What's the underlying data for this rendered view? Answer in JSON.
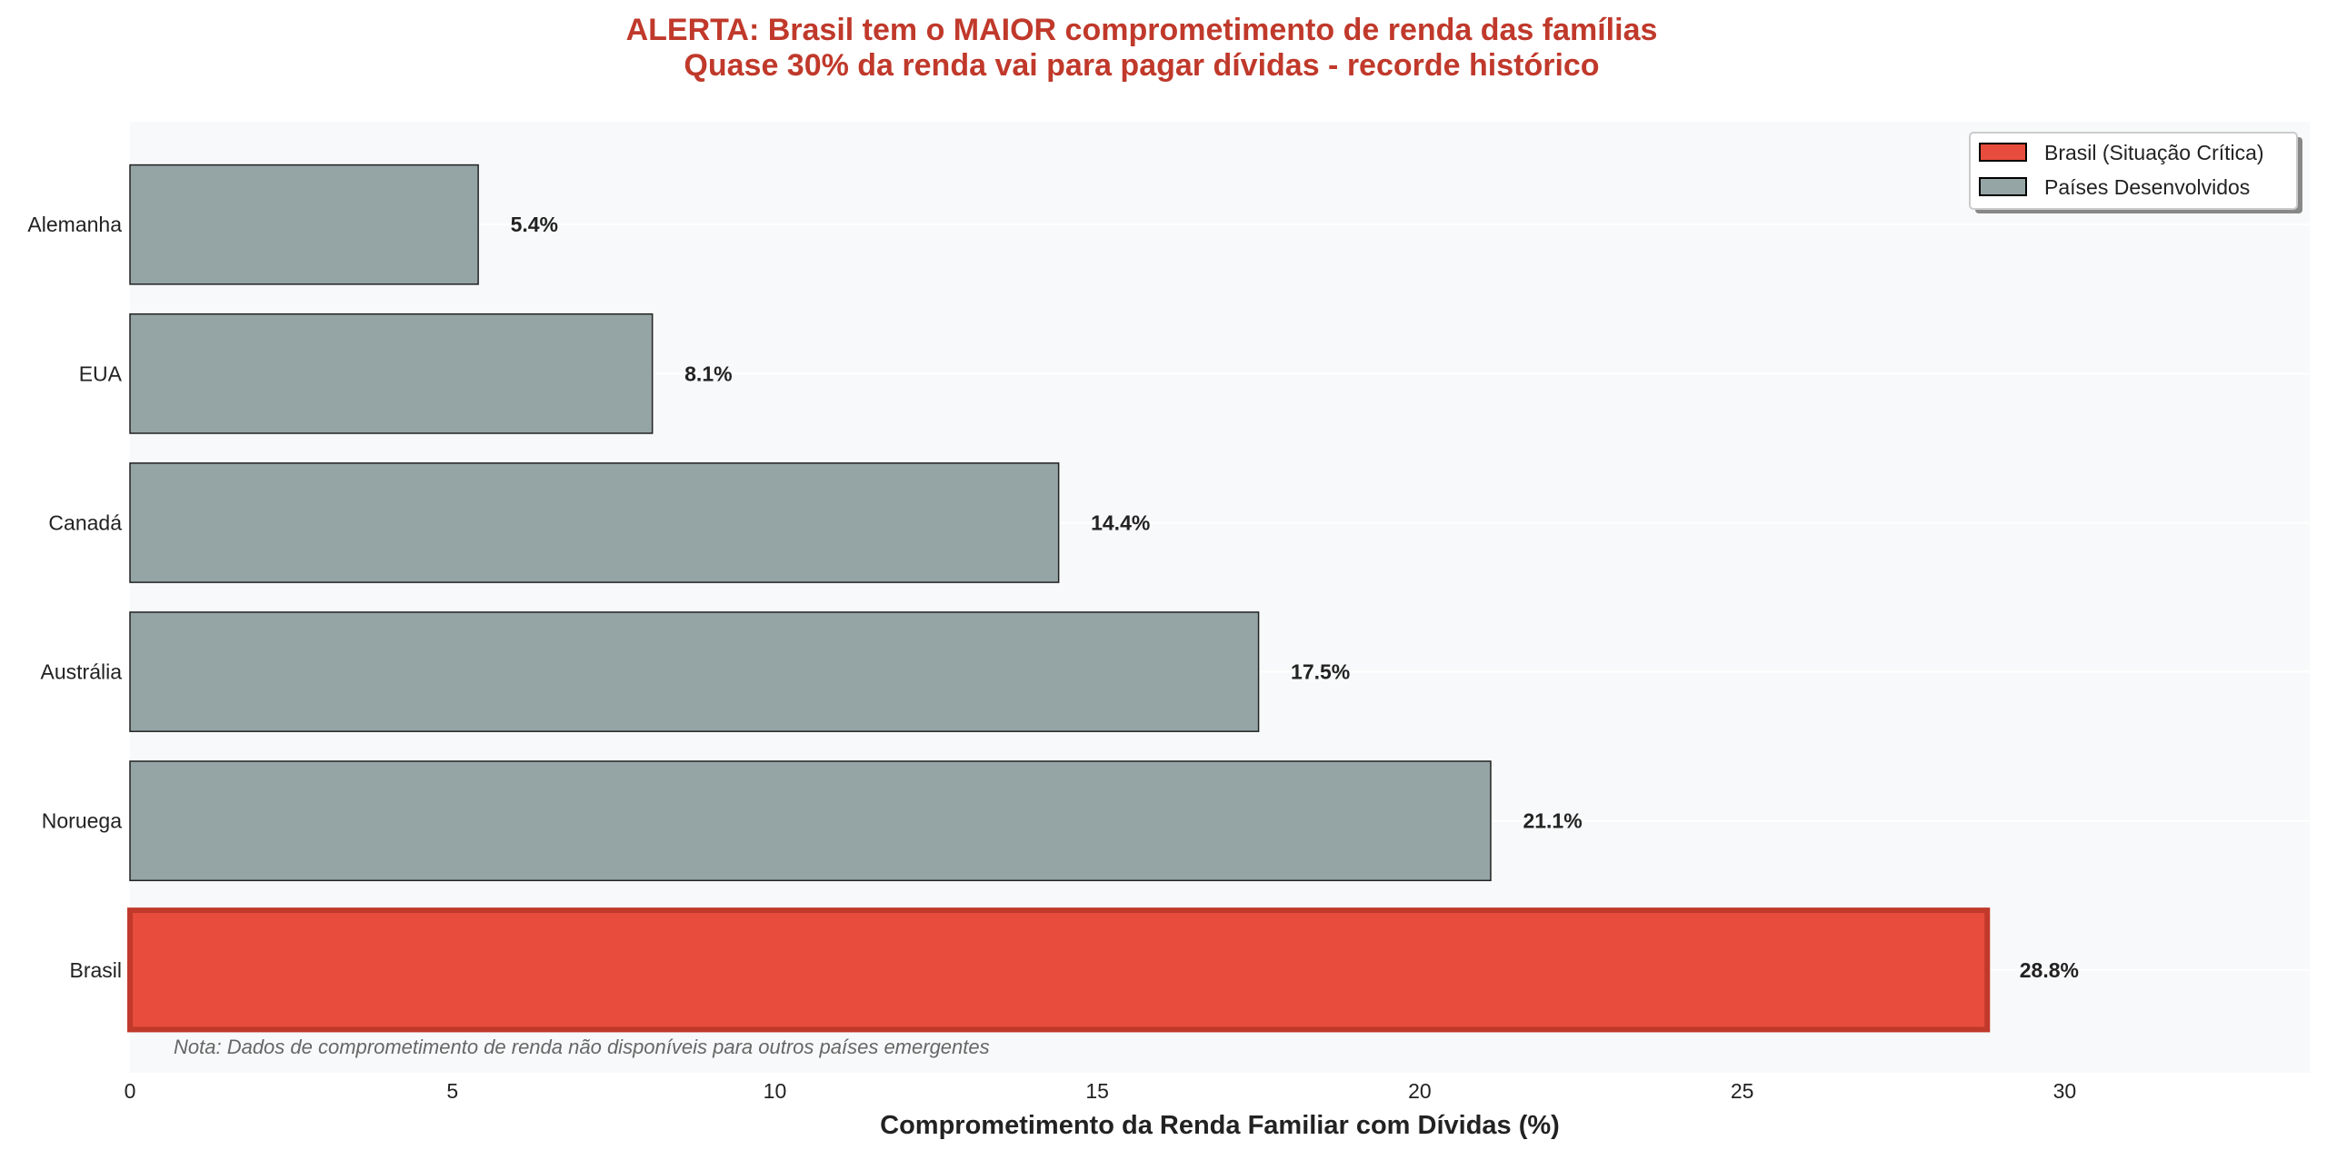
{
  "chart_data": {
    "type": "bar",
    "orientation": "horizontal",
    "title": "ALERTA: Brasil tem o MAIOR comprometimento de renda das famílias",
    "subtitle": "Quase 30% da renda vai para pagar dívidas - recorde histórico",
    "xlabel": "Comprometimento da Renda Familiar com Dívidas (%)",
    "ylabel": "",
    "categories": [
      "Brasil",
      "Noruega",
      "Austrália",
      "Canadá",
      "EUA",
      "Alemanha"
    ],
    "values": [
      28.8,
      21.1,
      17.5,
      14.4,
      8.1,
      5.4
    ],
    "value_labels": [
      "28.8%",
      "21.1%",
      "17.5%",
      "14.4%",
      "8.1%",
      "5.4%"
    ],
    "highlight": [
      true,
      false,
      false,
      false,
      false,
      false
    ],
    "xlim": [
      0,
      33.8
    ],
    "xticks": [
      0,
      5,
      10,
      15,
      20,
      25,
      30
    ],
    "xtick_labels": [
      "0",
      "5",
      "10",
      "15",
      "20",
      "25",
      "30"
    ],
    "grid": true,
    "legend": {
      "position": "top-right",
      "entries": [
        {
          "label": "Brasil (Situação Crítica)",
          "color": "#e74c3c"
        },
        {
          "label": "Países Desenvolvidos",
          "color": "#95a5a6"
        }
      ]
    },
    "annotation": "Nota: Dados de comprometimento de renda não disponíveis para outros países emergentes",
    "colors": {
      "highlight": "#e74c3c",
      "highlight_edge": "#c0392b",
      "normal": "#95a5a6",
      "title": "#c0392b",
      "plot_bg": "#f8f9fa"
    }
  }
}
